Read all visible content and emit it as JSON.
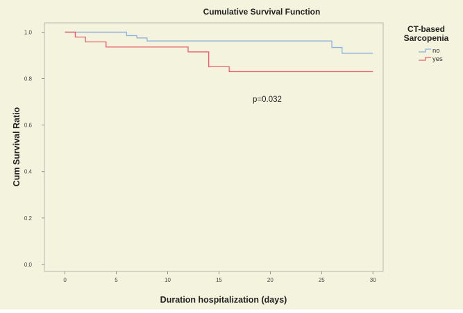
{
  "chart_data": {
    "type": "line",
    "title": "Cumulative Survival Function",
    "xlabel": "Duration hospitalization (days)",
    "ylabel": "Cum Survival Ratio",
    "xlim": [
      -2,
      31
    ],
    "ylim": [
      -0.03,
      1.04
    ],
    "xticks": [
      0,
      5,
      10,
      15,
      20,
      25,
      30
    ],
    "xtick_labels": [
      "0",
      "5",
      "10",
      "15",
      "20",
      "25",
      "30"
    ],
    "yticks": [
      0.0,
      0.2,
      0.4,
      0.6,
      0.8,
      1.0
    ],
    "ytick_labels": [
      "0.0",
      "0.2",
      "0.4",
      "0.6",
      "0.8",
      "1.0"
    ],
    "step": "post",
    "grid": false,
    "legend": {
      "title_line1": "CT-based",
      "title_line2": "Sarcopenia",
      "placement": "top-right"
    },
    "annotation": "p=0.032",
    "series": [
      {
        "name": "no",
        "color": "#8fb2d8",
        "x": [
          0,
          6,
          7,
          8,
          26,
          27,
          30
        ],
        "y": [
          1.0,
          0.985,
          0.975,
          0.962,
          0.934,
          0.909,
          0.909
        ]
      },
      {
        "name": "yes",
        "color": "#e8626b",
        "x": [
          0,
          1,
          2,
          4,
          12,
          14,
          16,
          30
        ],
        "y": [
          1.0,
          0.979,
          0.958,
          0.936,
          0.915,
          0.851,
          0.83,
          0.83
        ]
      }
    ]
  }
}
